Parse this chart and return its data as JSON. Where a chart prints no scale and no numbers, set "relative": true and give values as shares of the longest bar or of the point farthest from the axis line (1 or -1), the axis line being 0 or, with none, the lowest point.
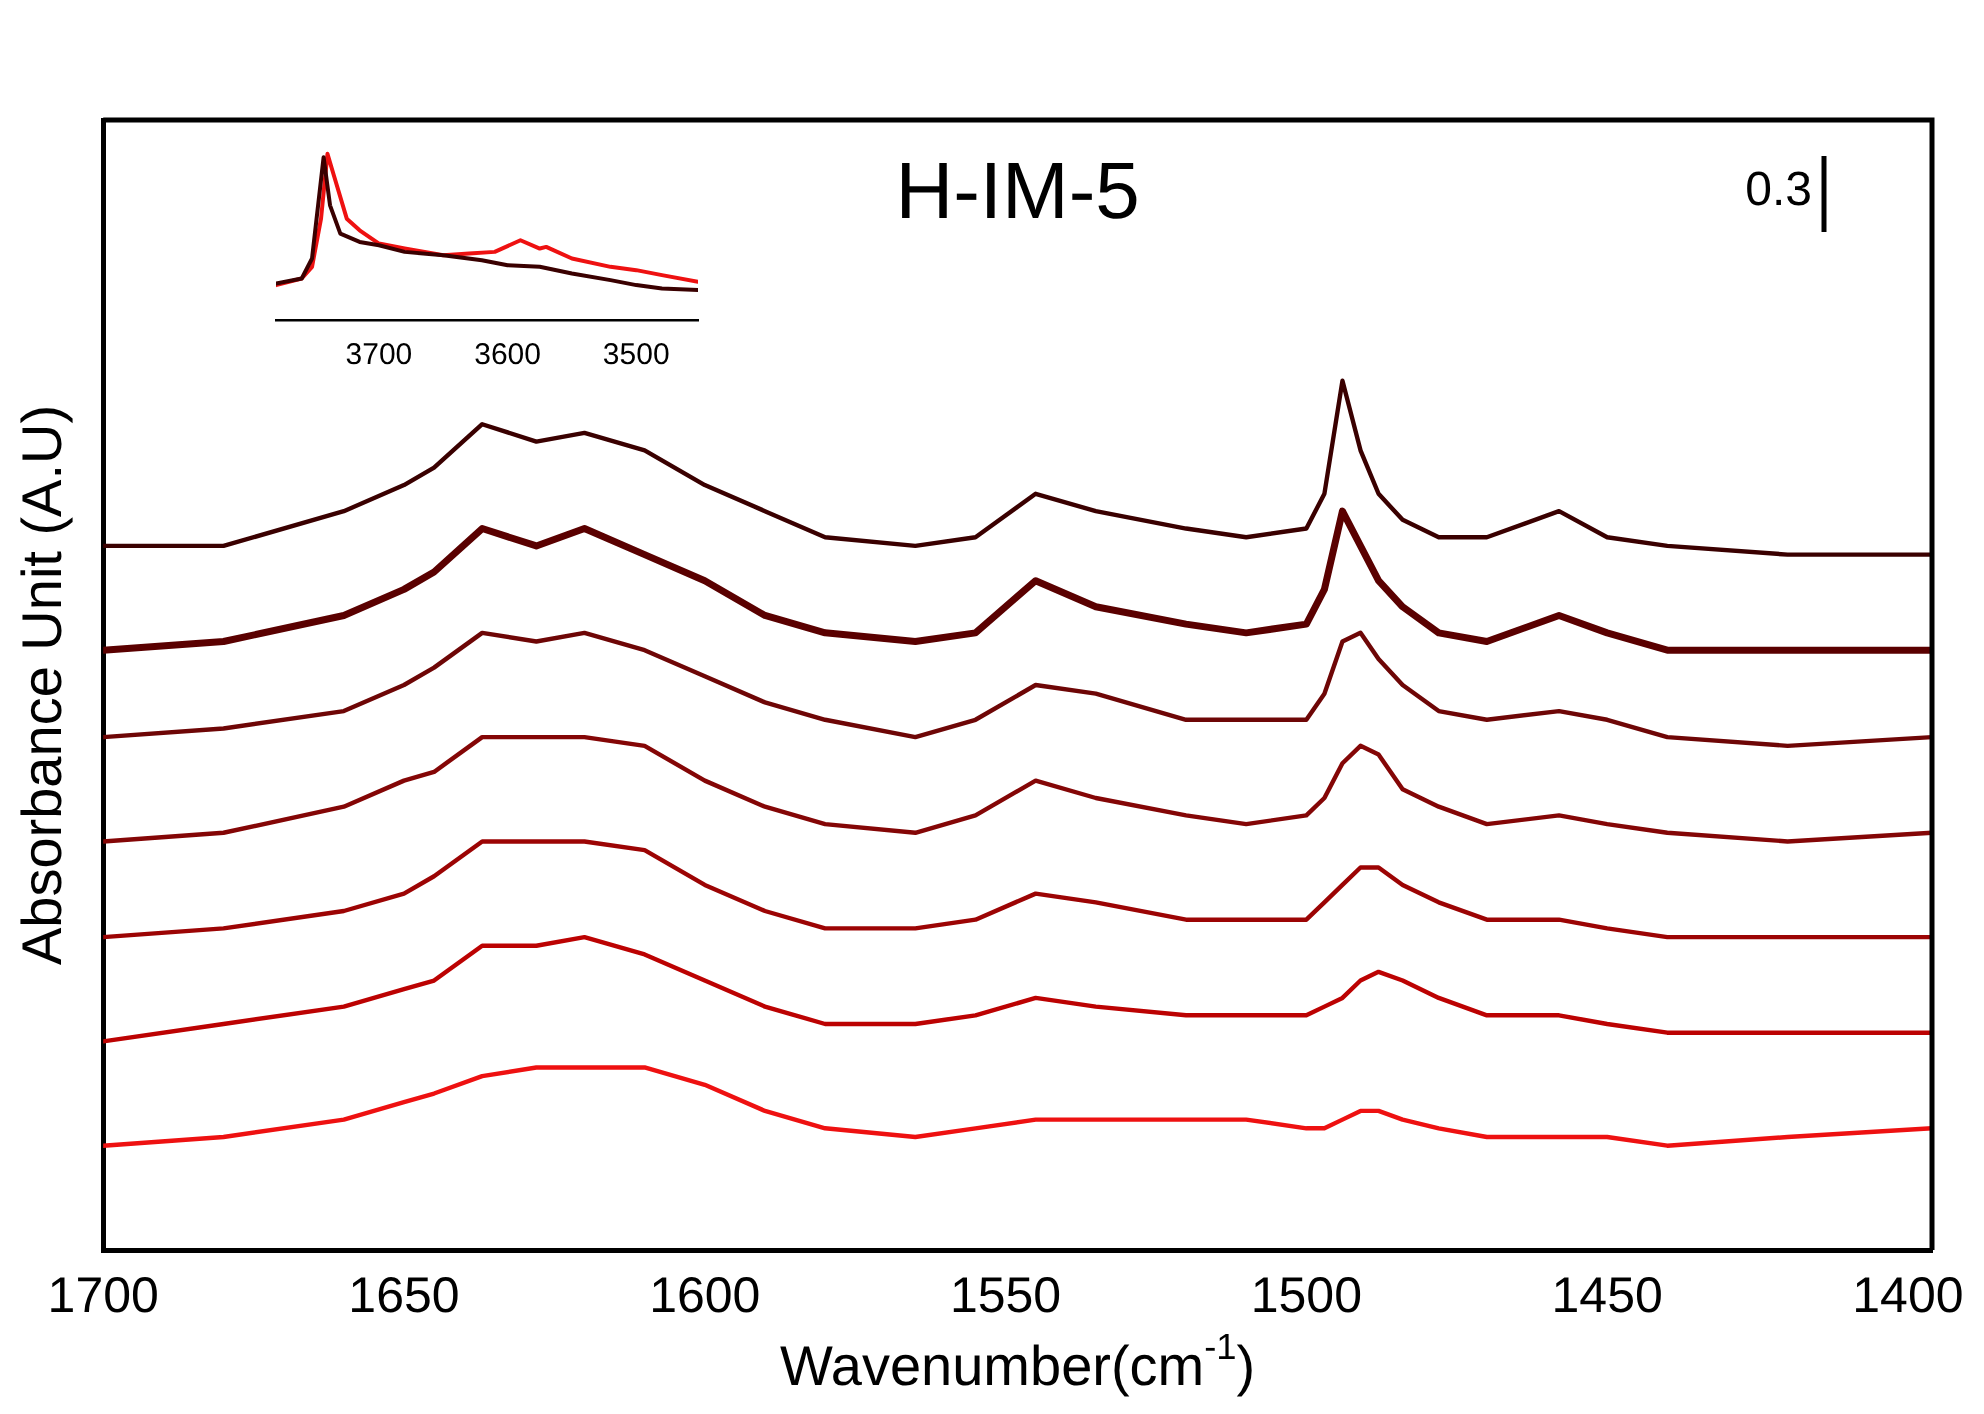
{
  "chart_data": [
    {
      "type": "line",
      "title": "H-IM-5",
      "xlabel": "Wavenumber(cm$^{-1}$)",
      "ylabel": "Absorbance Unit (A.U)",
      "annotations": [
        "0.3"
      ],
      "relative": true,
      "tick_labels": "x",
      "grid": false,
      "legend": false,
      "marker": "none",
      "line_style": "solid",
      "x": [
        1700,
        1680,
        1660,
        1650,
        1645,
        1637,
        1628,
        1620,
        1610,
        1600,
        1590,
        1580,
        1565,
        1555,
        1545,
        1535,
        1520,
        1510,
        1500,
        1497,
        1494,
        1491,
        1488,
        1484,
        1478,
        1470,
        1458,
        1450,
        1440,
        1420,
        1396
      ],
      "xlim": [
        1700,
        1396
      ],
      "xticks": [
        1700,
        1650,
        1600,
        1550,
        1500,
        1450,
        1400
      ],
      "series": [
        {
          "color": "#3a0000",
          "values": [
            0.81,
            0.81,
            0.85,
            0.88,
            0.9,
            0.95,
            0.93,
            0.94,
            0.92,
            0.88,
            0.85,
            0.82,
            0.81,
            0.82,
            0.87,
            0.85,
            0.83,
            0.82,
            0.83,
            0.87,
            1.0,
            0.92,
            0.87,
            0.84,
            0.82,
            0.82,
            0.85,
            0.82,
            0.81,
            0.8,
            0.8
          ]
        },
        {
          "color": "#5a0000",
          "values": [
            0.69,
            0.7,
            0.73,
            0.76,
            0.78,
            0.83,
            0.81,
            0.83,
            0.8,
            0.77,
            0.73,
            0.71,
            0.7,
            0.71,
            0.77,
            0.74,
            0.72,
            0.71,
            0.72,
            0.76,
            0.85,
            0.81,
            0.77,
            0.74,
            0.71,
            0.7,
            0.73,
            0.71,
            0.69,
            0.69,
            0.69
          ]
        },
        {
          "color": "#6e0606",
          "values": [
            0.59,
            0.6,
            0.62,
            0.65,
            0.67,
            0.71,
            0.7,
            0.71,
            0.69,
            0.66,
            0.63,
            0.61,
            0.59,
            0.61,
            0.65,
            0.64,
            0.61,
            0.61,
            0.61,
            0.64,
            0.7,
            0.71,
            0.68,
            0.65,
            0.62,
            0.61,
            0.62,
            0.61,
            0.59,
            0.58,
            0.59
          ]
        },
        {
          "color": "#840606",
          "values": [
            0.47,
            0.48,
            0.51,
            0.54,
            0.55,
            0.59,
            0.59,
            0.59,
            0.58,
            0.54,
            0.51,
            0.49,
            0.48,
            0.5,
            0.54,
            0.52,
            0.5,
            0.49,
            0.5,
            0.52,
            0.56,
            0.58,
            0.57,
            0.53,
            0.51,
            0.49,
            0.5,
            0.49,
            0.48,
            0.47,
            0.48
          ]
        },
        {
          "color": "#9c0404",
          "values": [
            0.36,
            0.37,
            0.39,
            0.41,
            0.43,
            0.47,
            0.47,
            0.47,
            0.46,
            0.42,
            0.39,
            0.37,
            0.37,
            0.38,
            0.41,
            0.4,
            0.38,
            0.38,
            0.38,
            0.4,
            0.42,
            0.44,
            0.44,
            0.42,
            0.4,
            0.38,
            0.38,
            0.37,
            0.36,
            0.36,
            0.36
          ]
        },
        {
          "color": "#bc0202",
          "values": [
            0.24,
            0.26,
            0.28,
            0.3,
            0.31,
            0.35,
            0.35,
            0.36,
            0.34,
            0.31,
            0.28,
            0.26,
            0.26,
            0.27,
            0.29,
            0.28,
            0.27,
            0.27,
            0.27,
            0.28,
            0.29,
            0.31,
            0.32,
            0.31,
            0.29,
            0.27,
            0.27,
            0.26,
            0.25,
            0.25,
            0.25
          ]
        },
        {
          "color": "#ee1111",
          "values": [
            0.12,
            0.13,
            0.15,
            0.17,
            0.18,
            0.2,
            0.21,
            0.21,
            0.21,
            0.19,
            0.16,
            0.14,
            0.13,
            0.14,
            0.15,
            0.15,
            0.15,
            0.15,
            0.14,
            0.14,
            0.15,
            0.16,
            0.16,
            0.15,
            0.14,
            0.13,
            0.13,
            0.13,
            0.12,
            0.13,
            0.14
          ]
        }
      ]
    },
    {
      "type": "line",
      "relative": true,
      "tick_labels": "x",
      "grid": false,
      "legend": false,
      "marker": "none",
      "line_style": "solid",
      "xlim": [
        3780,
        3452
      ],
      "xticks": [
        3700,
        3600,
        3500
      ],
      "series": [
        {
          "color": "#3a0000",
          "x": [
            3780,
            3760,
            3752,
            3743,
            3738,
            3730,
            3715,
            3700,
            3680,
            3650,
            3620,
            3600,
            3575,
            3550,
            3520,
            3500,
            3480,
            3452
          ],
          "values": [
            0.22,
            0.25,
            0.37,
            0.98,
            0.69,
            0.52,
            0.47,
            0.45,
            0.41,
            0.39,
            0.36,
            0.33,
            0.32,
            0.28,
            0.24,
            0.21,
            0.19,
            0.18
          ]
        },
        {
          "color": "#ee1111",
          "x": [
            3780,
            3760,
            3752,
            3745,
            3740,
            3735,
            3725,
            3715,
            3700,
            3680,
            3650,
            3630,
            3610,
            3590,
            3575,
            3570,
            3550,
            3520,
            3500,
            3480,
            3452
          ],
          "values": [
            0.21,
            0.25,
            0.32,
            0.61,
            1.0,
            0.87,
            0.61,
            0.54,
            0.46,
            0.43,
            0.39,
            0.4,
            0.41,
            0.48,
            0.43,
            0.44,
            0.37,
            0.32,
            0.3,
            0.27,
            0.23
          ]
        }
      ]
    }
  ]
}
